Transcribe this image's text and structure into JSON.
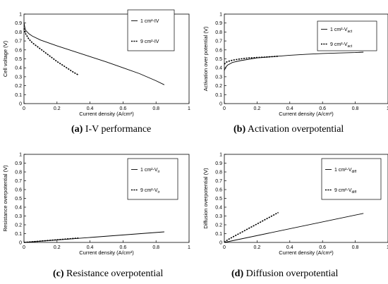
{
  "captions": [
    {
      "letter": "(a)",
      "text": "I-V performance"
    },
    {
      "letter": "(b)",
      "text": "Activation overpotential"
    },
    {
      "letter": "(c)",
      "text": "Resistance overpotential"
    },
    {
      "letter": "(d)",
      "text": "Diffusion overpotential"
    }
  ],
  "chart_data": [
    {
      "type": "line",
      "title": "",
      "xlabel": "Current density (A/cm²)",
      "ylabel": "Cell voltage (V)",
      "xlim": [
        0,
        1
      ],
      "ylim": [
        0,
        1
      ],
      "xticks": [
        "0",
        "0.2",
        "0.4",
        "0.6",
        "0.8",
        "1"
      ],
      "yticks": [
        "0",
        "0.1",
        "0.2",
        "0.3",
        "0.4",
        "0.5",
        "0.6",
        "0.7",
        "0.8",
        "0.9",
        "1"
      ],
      "legend_position": "top-right",
      "series": [
        {
          "name": "1 cm²-IV",
          "style": "solid",
          "x": [
            0.0,
            0.005,
            0.01,
            0.03,
            0.05,
            0.1,
            0.2,
            0.3,
            0.4,
            0.5,
            0.6,
            0.7,
            0.8,
            0.85
          ],
          "y": [
            0.91,
            0.85,
            0.82,
            0.78,
            0.755,
            0.71,
            0.645,
            0.585,
            0.525,
            0.465,
            0.4,
            0.335,
            0.255,
            0.21
          ]
        },
        {
          "name": "9 cm²-IV",
          "style": "dashed",
          "x": [
            0.0,
            0.01,
            0.03,
            0.05,
            0.1,
            0.15,
            0.2,
            0.25,
            0.3,
            0.33
          ],
          "y": [
            0.84,
            0.78,
            0.72,
            0.68,
            0.61,
            0.54,
            0.47,
            0.41,
            0.35,
            0.32
          ]
        }
      ]
    },
    {
      "type": "line",
      "title": "",
      "xlabel": "Current density (A/cm²)",
      "ylabel": "Activation over potential (V)",
      "xlim": [
        0,
        1
      ],
      "ylim": [
        0,
        1
      ],
      "xticks": [
        "0",
        "0.2",
        "0.4",
        "0.6",
        "0.8",
        "1"
      ],
      "yticks": [
        "0",
        "0.1",
        "0.2",
        "0.3",
        "0.4",
        "0.5",
        "0.6",
        "0.7",
        "0.8",
        "0.9",
        "1"
      ],
      "legend_position": "top-right",
      "series": [
        {
          "name": "1 cm²-V",
          "sub": "act",
          "style": "solid",
          "x": [
            0.0,
            0.01,
            0.02,
            0.05,
            0.1,
            0.2,
            0.3,
            0.4,
            0.5,
            0.6,
            0.7,
            0.8,
            0.85
          ],
          "y": [
            0.37,
            0.41,
            0.43,
            0.46,
            0.48,
            0.51,
            0.525,
            0.54,
            0.55,
            0.56,
            0.565,
            0.57,
            0.575
          ]
        },
        {
          "name": "9 cm²-V",
          "sub": "act",
          "style": "dashed",
          "x": [
            0.0,
            0.01,
            0.02,
            0.05,
            0.1,
            0.15,
            0.2,
            0.25,
            0.3,
            0.33
          ],
          "y": [
            0.44,
            0.46,
            0.47,
            0.485,
            0.5,
            0.51,
            0.515,
            0.52,
            0.525,
            0.53
          ]
        }
      ]
    },
    {
      "type": "line",
      "title": "",
      "xlabel": "Current density (A/cm²)",
      "ylabel": "Resistance overpotential (V)",
      "xlim": [
        0,
        1
      ],
      "ylim": [
        0,
        1
      ],
      "xticks": [
        "0",
        "0.2",
        "0.4",
        "0.6",
        "0.8",
        "1"
      ],
      "yticks": [
        "0",
        "0.1",
        "0.2",
        "0.3",
        "0.4",
        "0.5",
        "0.6",
        "0.7",
        "0.8",
        "0.9",
        "1"
      ],
      "legend_position": "top-right",
      "series": [
        {
          "name": "1 cm²-V",
          "sub": "ir",
          "style": "solid",
          "x": [
            0.0,
            0.85
          ],
          "y": [
            0.0,
            0.12
          ]
        },
        {
          "name": "9 cm²-V",
          "sub": "ir",
          "style": "dashed",
          "x": [
            0.0,
            0.33
          ],
          "y": [
            0.0,
            0.05
          ]
        }
      ]
    },
    {
      "type": "line",
      "title": "",
      "xlabel": "Current density (A/cm²)",
      "ylabel": "Diffusion overpotential (V)",
      "xlim": [
        0,
        1
      ],
      "ylim": [
        0,
        1
      ],
      "xticks": [
        "0",
        "0.2",
        "0.4",
        "0.6",
        "0.8",
        "1"
      ],
      "yticks": [
        "0",
        "0.1",
        "0.2",
        "0.3",
        "0.4",
        "0.5",
        "0.6",
        "0.7",
        "0.8",
        "0.9",
        "1"
      ],
      "legend_position": "top-right",
      "series": [
        {
          "name": "1 cm²-V",
          "sub": "diff",
          "style": "solid",
          "x": [
            0.0,
            0.85
          ],
          "y": [
            0.0,
            0.33
          ]
        },
        {
          "name": "9 cm²-V",
          "sub": "diff",
          "style": "dashed",
          "x": [
            0.0,
            0.02,
            0.05,
            0.1,
            0.15,
            0.2,
            0.25,
            0.3,
            0.33
          ],
          "y": [
            0.0,
            0.03,
            0.06,
            0.11,
            0.16,
            0.21,
            0.26,
            0.31,
            0.34
          ]
        }
      ]
    }
  ]
}
